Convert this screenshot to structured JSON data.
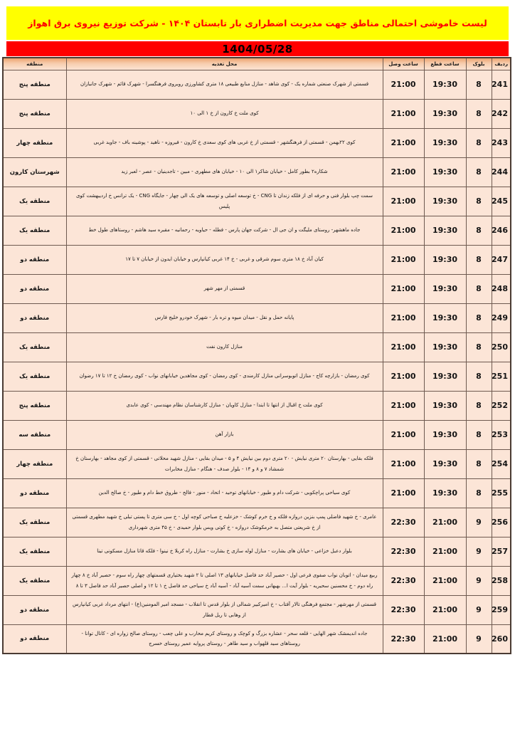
{
  "page": {
    "title_banner": "لیست خاموشی احتمالی مناطق جهت مدیریت اضطراری بار تابستان ۱۴۰۴ - شرکت توزیع نیروی برق اهواز",
    "date": "1404/05/28"
  },
  "colors": {
    "banner_bg": "#ffff00",
    "banner_text": "#ff0000",
    "date_bg": "#ff0000",
    "date_text": "#000000",
    "header_gradient_top": "#eda470",
    "header_gradient_bottom": "#fce4d4",
    "row_bg": "#fce5d7",
    "grid_line": "#6e5a50"
  },
  "table": {
    "columns": {
      "row": "ردیف",
      "block": "بلوک",
      "cut_time": "ساعت قطع",
      "restore_time": "ساعت وصل",
      "location": "محل تغذیه",
      "region": "منطقه"
    },
    "rows": [
      {
        "row": "241",
        "block": "8",
        "cut_time": "19:30",
        "restore_time": "21:00",
        "location": "قسمتی از شهرک صنعتی شماره یک - کوی شاهد - منازل منابع طبیعی ۱۸ متری کشاورزی روبروی فرهنگسرا - شهرک قائم - شهرک جانبازان",
        "region": "منطقه پنج"
      },
      {
        "row": "242",
        "block": "8",
        "cut_time": "19:30",
        "restore_time": "21:00",
        "location": "کوی ملت خ کارون از خ ۱ الی ۱۰",
        "region": "منطقه پنج"
      },
      {
        "row": "243",
        "block": "8",
        "cut_time": "19:30",
        "restore_time": "21:00",
        "location": "کوی ۲۲بهمن - قسمتی از فرهنگشهر - قسمتی از خ غربی های کوی سعدی خ کارون - فیروزه - ناهید - پوشینه باف - جاوید غربی",
        "region": "منطقه چهار"
      },
      {
        "row": "244",
        "block": "8",
        "cut_time": "19:30",
        "restore_time": "21:00",
        "location": "شکاره۲ بطور کامل - خیابان شاکر۱ الی ۱۰ - خیابان های مطهری - مبین - تاجدینیان - عصر - لعبر زید",
        "region": "شهرستان کارون"
      },
      {
        "row": "245",
        "block": "8",
        "cut_time": "19:30",
        "restore_time": "21:00",
        "location": "سمت چپ بلوار فنی و حرفه ای از فلکه زندان تا CNG - خ توسعه اصلی و توسعه های یک الی چهار - جایگاه CNG - یک ترانس خ اردیبهشت کوی پلیس",
        "region": "منطقه یک"
      },
      {
        "row": "246",
        "block": "8",
        "cut_time": "19:30",
        "restore_time": "21:00",
        "location": "جاده ماهشهر- روستای ملیگت و ان جی ال - شرکت جهان پارس - فطله - حیاویه - رحمانیه - مقبره سید هاشم - روستاهای طول خط",
        "region": "منطقه یک"
      },
      {
        "row": "247",
        "block": "8",
        "cut_time": "19:30",
        "restore_time": "21:00",
        "location": "کیان آباد خ ۱۸ متری سوم شرقی و غربی - خ ۱۴ غربی کیانپارس و خیابان ایدون از خیابان ۷ تا ۱۷",
        "region": "منطقه دو"
      },
      {
        "row": "248",
        "block": "8",
        "cut_time": "19:30",
        "restore_time": "21:00",
        "location": "قسمتی از مهر شهر",
        "region": "منطقه دو"
      },
      {
        "row": "249",
        "block": "8",
        "cut_time": "19:30",
        "restore_time": "21:00",
        "location": "پایانه حمل و نقل - میدان میوه و تره بار - شهرک خودرو خلیج فارس",
        "region": "منطقه دو"
      },
      {
        "row": "250",
        "block": "8",
        "cut_time": "19:30",
        "restore_time": "21:00",
        "location": "منازل کارون نفت",
        "region": "منطقه یک"
      },
      {
        "row": "251",
        "block": "8",
        "cut_time": "19:30",
        "restore_time": "21:00",
        "location": "کوی رمضان - بازارچه کاج - منازل اتوبوسرانی منازل کارمندی - کوی رمضان - کوی مجاهدین خیابانهای نواب - کوی رمضان خ ۱۲ تا ۱۷ رضوان",
        "region": "منطقه یک"
      },
      {
        "row": "252",
        "block": "8",
        "cut_time": "19:30",
        "restore_time": "21:00",
        "location": "کوی ملت خ اقبال از انتها تا ابتدا - منازل کاویان - منازل کارشناسان نظام مهندسی - کوی عابدی",
        "region": "منطقه پنج"
      },
      {
        "row": "253",
        "block": "8",
        "cut_time": "19:30",
        "restore_time": "21:00",
        "location": "بازار آهن",
        "region": "منطقه سه"
      },
      {
        "row": "254",
        "block": "8",
        "cut_time": "19:30",
        "restore_time": "21:00",
        "location": "فلکه بقایی - بهارستان ۲۰ متری نیایش - ۲۰ متری دوم بین نیایش ۴ و ۵ - میدان بقایی - منازل شهید محلاتی - قسمتی از کوی مجاهد - بهارستان خ شمشاد ۷ و ۸ و ۱۴ - بلوار صدف - هنگام - منازل مخابرات",
        "region": "منطقه چهار"
      },
      {
        "row": "255",
        "block": "8",
        "cut_time": "19:30",
        "restore_time": "21:00",
        "location": "کوی سیاحی پراچکوبی - شرکت دام و طیور - خیابانهای توحید - اتحاد - منور - فالح - طروق خط دام و طیور - خ صالح الدین",
        "region": "منطقه دو"
      },
      {
        "row": "256",
        "block": "9",
        "cut_time": "21:00",
        "restore_time": "22:30",
        "location": "عامری - خ شهید فاضلی پمپ بنزین دروازه فلکه و خ خرم کوشک - خزعلیه خ صباحی کوچه اول - خ سی متری تا پستی تبلی خ شهید مطهری قسمتی از خ شریعتی متصل به خرمکوشک دروازه - خ کوتی ویس بلوار حمیدی - خ ۴۵ متری شهرداری",
        "region": "منطقه یک"
      },
      {
        "row": "257",
        "block": "9",
        "cut_time": "21:00",
        "restore_time": "22:30",
        "location": "بلوار دعبل خزاعی - خیابان های بشارت - منازل لوله سازی خ بشارت - منازل راه کربلا خ نینوا - فلکه قاتا منازل مسکونی تینا",
        "region": "منطقه یک"
      },
      {
        "row": "258",
        "block": "9",
        "cut_time": "21:00",
        "restore_time": "22:30",
        "location": "ربیع میدان - اتوبان نواب صفوی فرعی اول - حصیر آباد حد فاصل خیابانهای ۱۳ اصلی تا ۲ شهید بختیاری قسمتهای چهار راه سوم - حصیر آباد خ ۸ چهار راه دوم - خ محسنین سحیریه - بلوار آیت ا... بهبهانی سمت آسیه آباد - آسیه آباد خ سیاحی حد فاصل خ ۱ تا ۱۲ و اصلی حصیر آباد حد فاصل ۳ تا ۸",
        "region": "منطقه یک"
      },
      {
        "row": "259",
        "block": "9",
        "cut_time": "21:00",
        "restore_time": "22:30",
        "location": "قسمتی از مهرشهر - مجتمع فرهنگی تالار آفتاب - خ امیرکبیر شمالی از بلوار قدس تا انقلاب - مسجد امیر المومنین(ع) - انتهای مرداد غربی کیانپارس از وهابی تا ریل قطار",
        "region": "منطقه دو"
      },
      {
        "row": "260",
        "block": "9",
        "cut_time": "21:00",
        "restore_time": "22:30",
        "location": "جاده اندیمشک شهر الهایی - قلعه سحر - عشاره بزرگ و کوچک و روستای کریم محارب و علی چعب - روستای صالح زواره ای - کانال توانا - روستاهای سید قلهواب و سید طاهر - روستای پروایه عمیر روستای خسرج",
        "region": "منطقه دو"
      }
    ]
  }
}
